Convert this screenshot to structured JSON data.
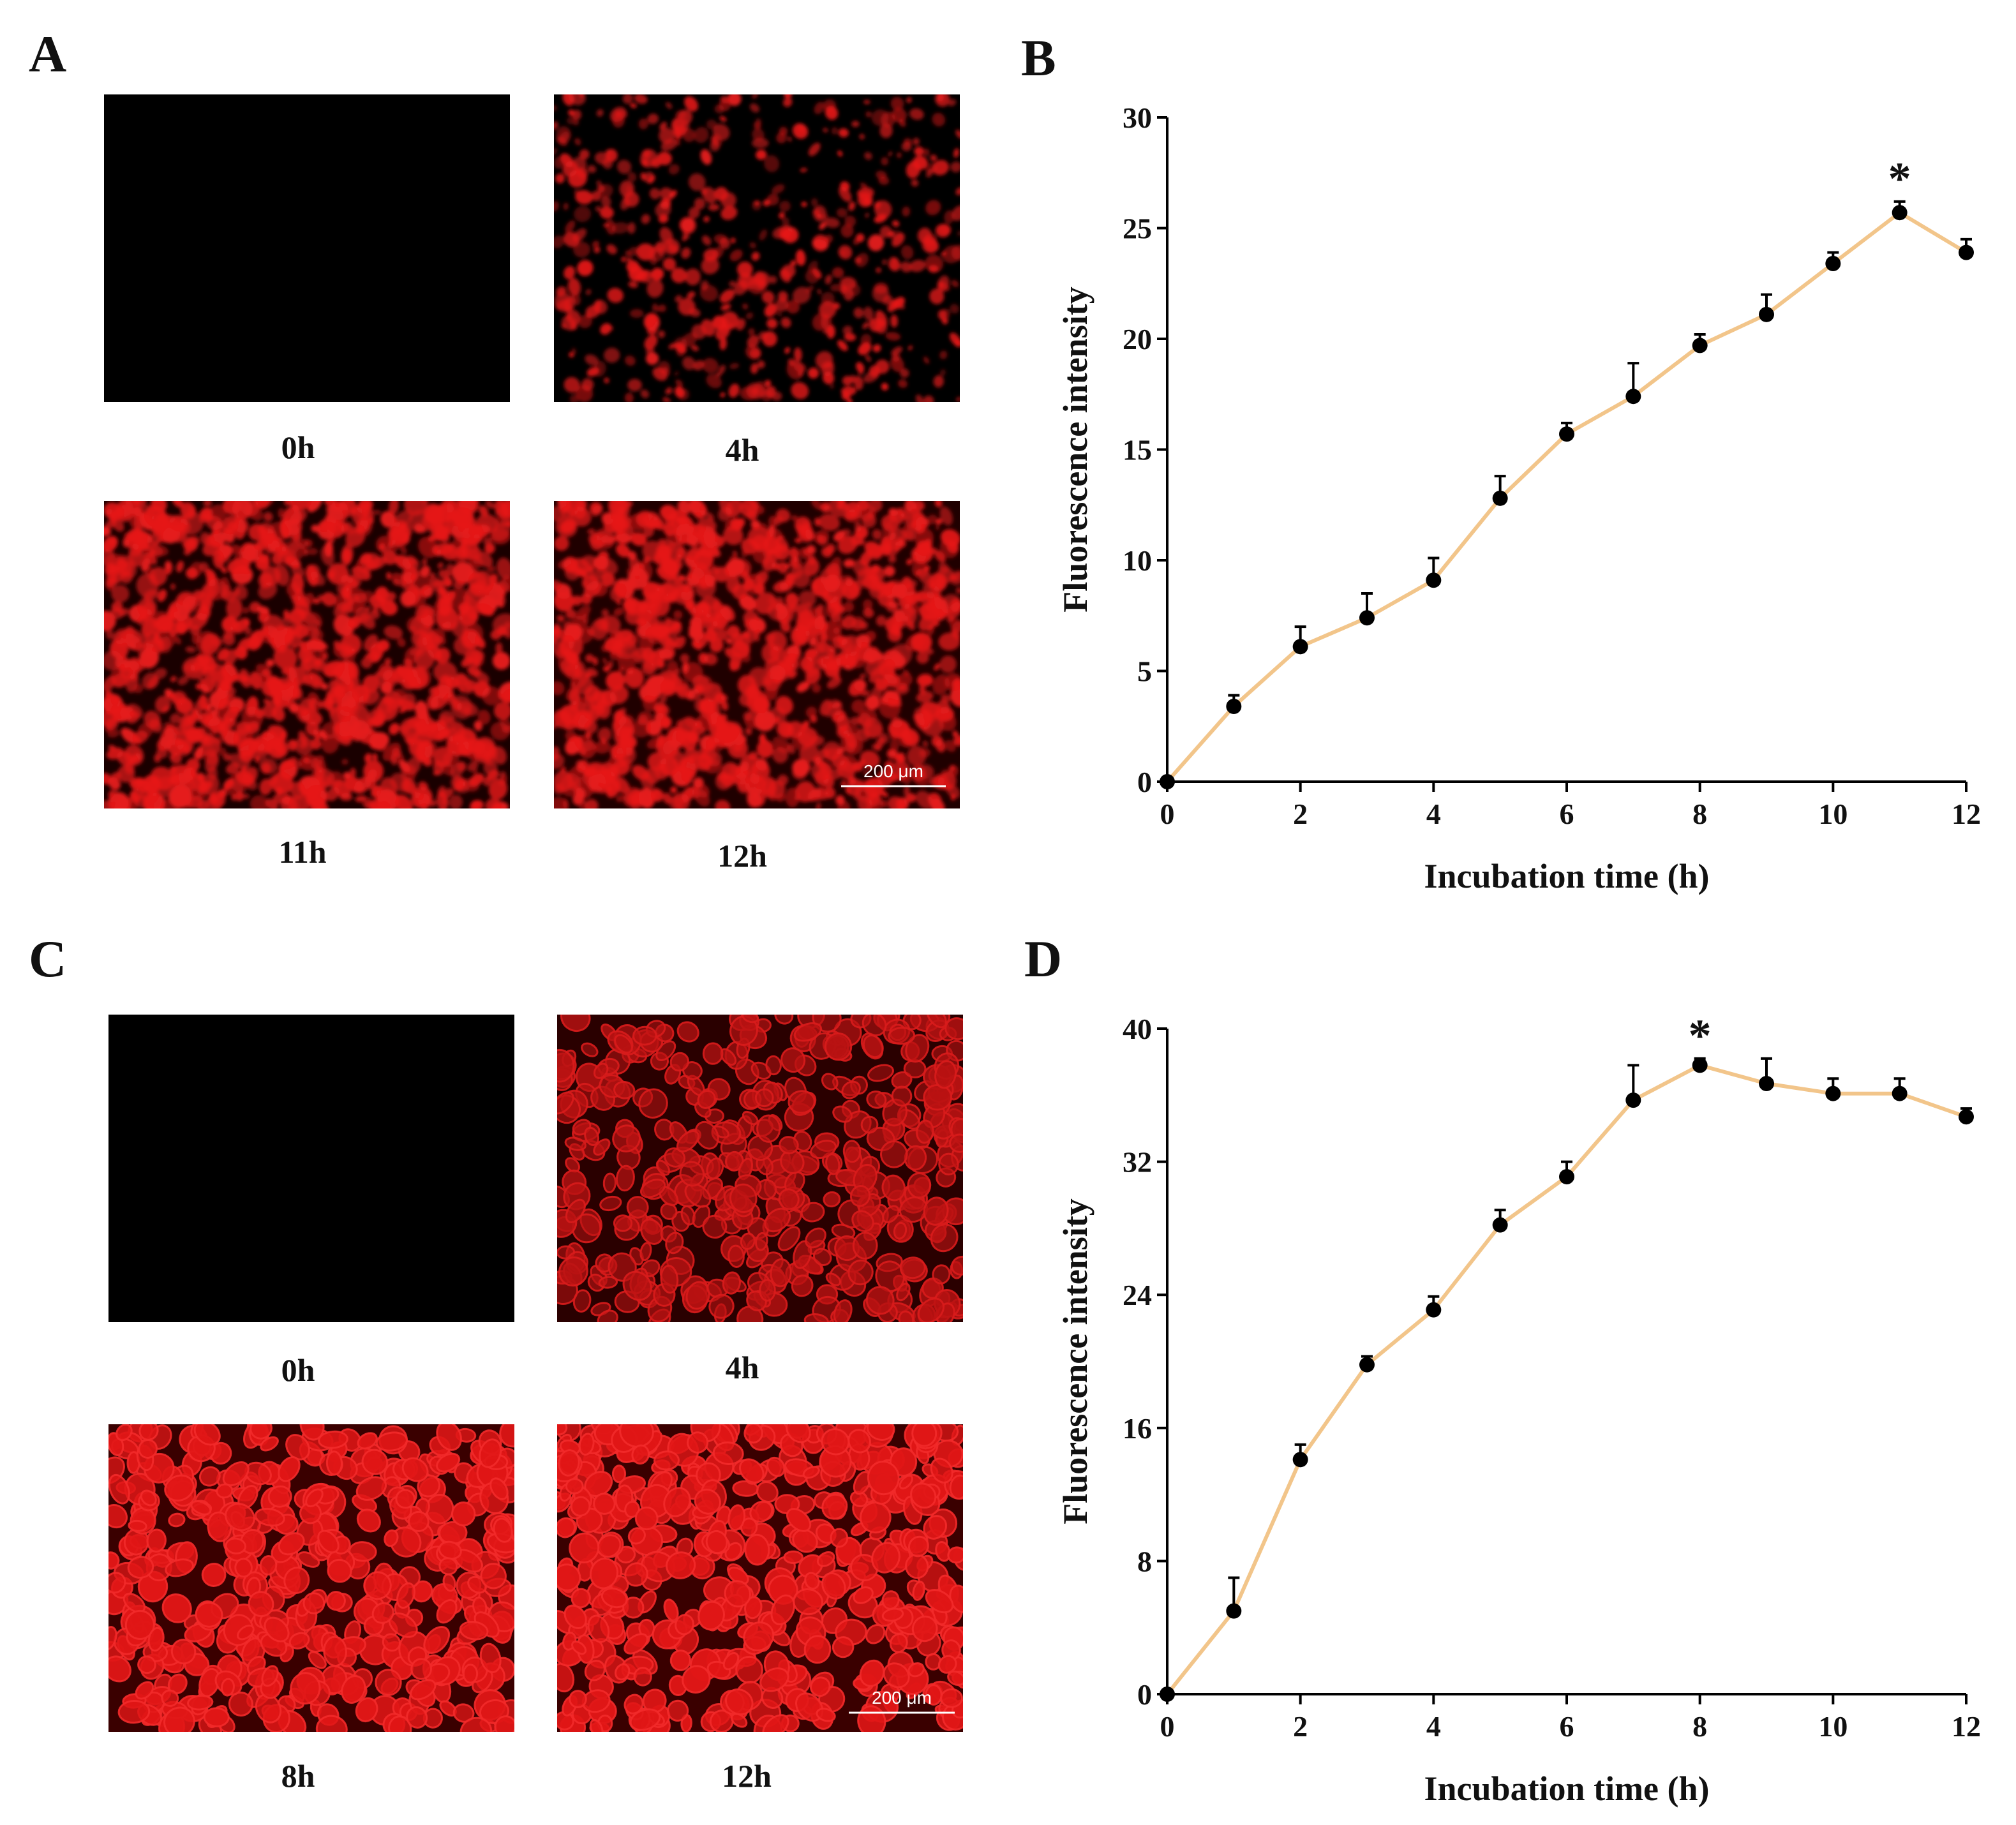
{
  "figure": {
    "panels": [
      {
        "id": "A",
        "letter": "A",
        "images": [
          {
            "label": "0h",
            "style": "black"
          },
          {
            "label": "4h",
            "style": "sparse"
          },
          {
            "label": "11h",
            "style": "dense"
          },
          {
            "label": "12h",
            "style": "dense",
            "scale_bar": "200 μm"
          }
        ]
      },
      {
        "id": "C",
        "letter": "C",
        "images": [
          {
            "label": "0h",
            "style": "black"
          },
          {
            "label": "4h",
            "style": "cells-dim"
          },
          {
            "label": "8h",
            "style": "cells-bright"
          },
          {
            "label": "12h",
            "style": "cells-bright",
            "scale_bar": "200 μm"
          }
        ]
      }
    ]
  },
  "colors": {
    "line": "#f2c58a",
    "marker": "#000000",
    "fluorescence": "#e51a1a",
    "image_bg": "#000000"
  },
  "chart_data": [
    {
      "panel": "B",
      "type": "line",
      "xlabel": "Incubation time (h)",
      "ylabel": "Fluorescence intensity",
      "xlim": [
        0,
        12
      ],
      "ylim": [
        0,
        30
      ],
      "xticks": [
        0,
        2,
        4,
        6,
        8,
        10,
        12
      ],
      "yticks": [
        0,
        5,
        10,
        15,
        20,
        25,
        30
      ],
      "series": [
        {
          "name": "Fluorescence intensity",
          "x": [
            0,
            1,
            2,
            3,
            4,
            5,
            6,
            7,
            8,
            9,
            10,
            11,
            12
          ],
          "values": [
            0,
            3.4,
            6.1,
            7.4,
            9.1,
            12.8,
            15.7,
            17.4,
            19.7,
            21.1,
            23.4,
            25.7,
            23.9
          ],
          "error": [
            0,
            0.5,
            0.9,
            1.1,
            1.0,
            1.0,
            0.5,
            1.5,
            0.5,
            0.9,
            0.5,
            0.5,
            0.6
          ]
        }
      ],
      "annotations": [
        {
          "x": 11,
          "text": "*"
        }
      ]
    },
    {
      "panel": "D",
      "type": "line",
      "xlabel": "Incubation time (h)",
      "ylabel": "Fluorescence intensity",
      "xlim": [
        0,
        12
      ],
      "ylim": [
        0,
        40
      ],
      "xticks": [
        0,
        2,
        4,
        6,
        8,
        10,
        12
      ],
      "yticks": [
        0,
        8,
        16,
        24,
        32,
        40
      ],
      "series": [
        {
          "name": "Fluorescence intensity",
          "x": [
            0,
            1,
            2,
            3,
            4,
            5,
            6,
            7,
            8,
            9,
            10,
            11,
            12
          ],
          "values": [
            0,
            5.0,
            14.1,
            19.8,
            23.1,
            28.2,
            31.1,
            35.7,
            37.8,
            36.7,
            36.1,
            36.1,
            34.7
          ],
          "error": [
            0,
            2.0,
            0.9,
            0.5,
            0.8,
            0.9,
            0.9,
            2.1,
            0.4,
            1.5,
            0.9,
            0.9,
            0.5
          ]
        }
      ],
      "annotations": [
        {
          "x": 8,
          "text": "*"
        }
      ]
    }
  ]
}
